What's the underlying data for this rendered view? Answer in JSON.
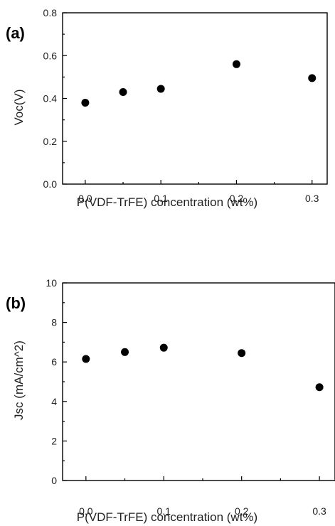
{
  "chart_data": [
    {
      "type": "scatter",
      "panel_label": "(a)",
      "xlabel": "P(VDF-TrFE) concentration (wt%)",
      "ylabel": "Voc(V)",
      "xlim": [
        -0.03,
        0.32
      ],
      "ylim": [
        0.0,
        0.8
      ],
      "xticks": [
        0.0,
        0.1,
        0.2,
        0.3
      ],
      "xtick_labels": [
        "0.0",
        "0.1",
        "0.2",
        "0.3"
      ],
      "yticks": [
        0.0,
        0.2,
        0.4,
        0.6,
        0.8
      ],
      "ytick_labels": [
        "0.0",
        "0.2",
        "0.4",
        "0.6",
        "0.8"
      ],
      "series": [
        {
          "x": [
            0.0,
            0.05,
            0.1,
            0.2,
            0.3
          ],
          "y": [
            0.38,
            0.43,
            0.445,
            0.56,
            0.495
          ]
        }
      ],
      "grid": false
    },
    {
      "type": "scatter",
      "panel_label": "(b)",
      "xlabel": "P(VDF-TrFE) concentration (wt%)",
      "ylabel": "Jsc (mA/cm^2)",
      "xlim": [
        -0.03,
        0.32
      ],
      "ylim": [
        0,
        10
      ],
      "xticks": [
        0.0,
        0.1,
        0.2,
        0.3
      ],
      "xtick_labels": [
        "0.0",
        "0.1",
        "0.2",
        "0.3"
      ],
      "yticks": [
        0,
        2,
        4,
        6,
        8,
        10
      ],
      "ytick_labels": [
        "0",
        "2",
        "4",
        "6",
        "8",
        "10"
      ],
      "series": [
        {
          "x": [
            0.0,
            0.05,
            0.1,
            0.2,
            0.3
          ],
          "y": [
            6.15,
            6.5,
            6.72,
            6.45,
            4.72
          ]
        }
      ],
      "grid": false
    }
  ]
}
